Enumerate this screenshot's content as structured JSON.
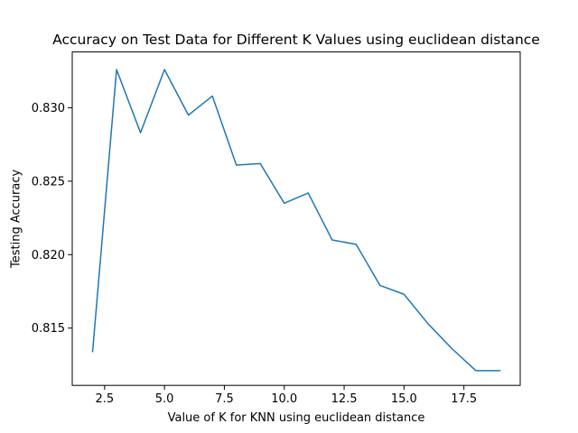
{
  "chart_data": {
    "type": "line",
    "title": "Accuracy on Test Data for Different K Values using euclidean distance",
    "xlabel": "Value of K for KNN using euclidean distance",
    "ylabel": "Testing Accuracy",
    "x_ticks": [
      "2.5",
      "5.0",
      "7.5",
      "10.0",
      "12.5",
      "15.0",
      "17.5"
    ],
    "y_ticks": [
      "0.815",
      "0.820",
      "0.825",
      "0.830"
    ],
    "xlim": [
      1.15,
      19.85
    ],
    "ylim": [
      0.8111,
      0.8338
    ],
    "grid": false,
    "legend": "none",
    "series": [
      {
        "color": "#1f77b4",
        "x": [
          2,
          3,
          4,
          5,
          6,
          7,
          8,
          9,
          10,
          11,
          12,
          13,
          14,
          15,
          16,
          17,
          18,
          19
        ],
        "y": [
          0.8134,
          0.8326,
          0.8283,
          0.8326,
          0.8295,
          0.8308,
          0.8261,
          0.8262,
          0.8235,
          0.8242,
          0.821,
          0.8207,
          0.8179,
          0.8173,
          0.8153,
          0.8136,
          0.8121,
          0.8121
        ]
      }
    ]
  }
}
